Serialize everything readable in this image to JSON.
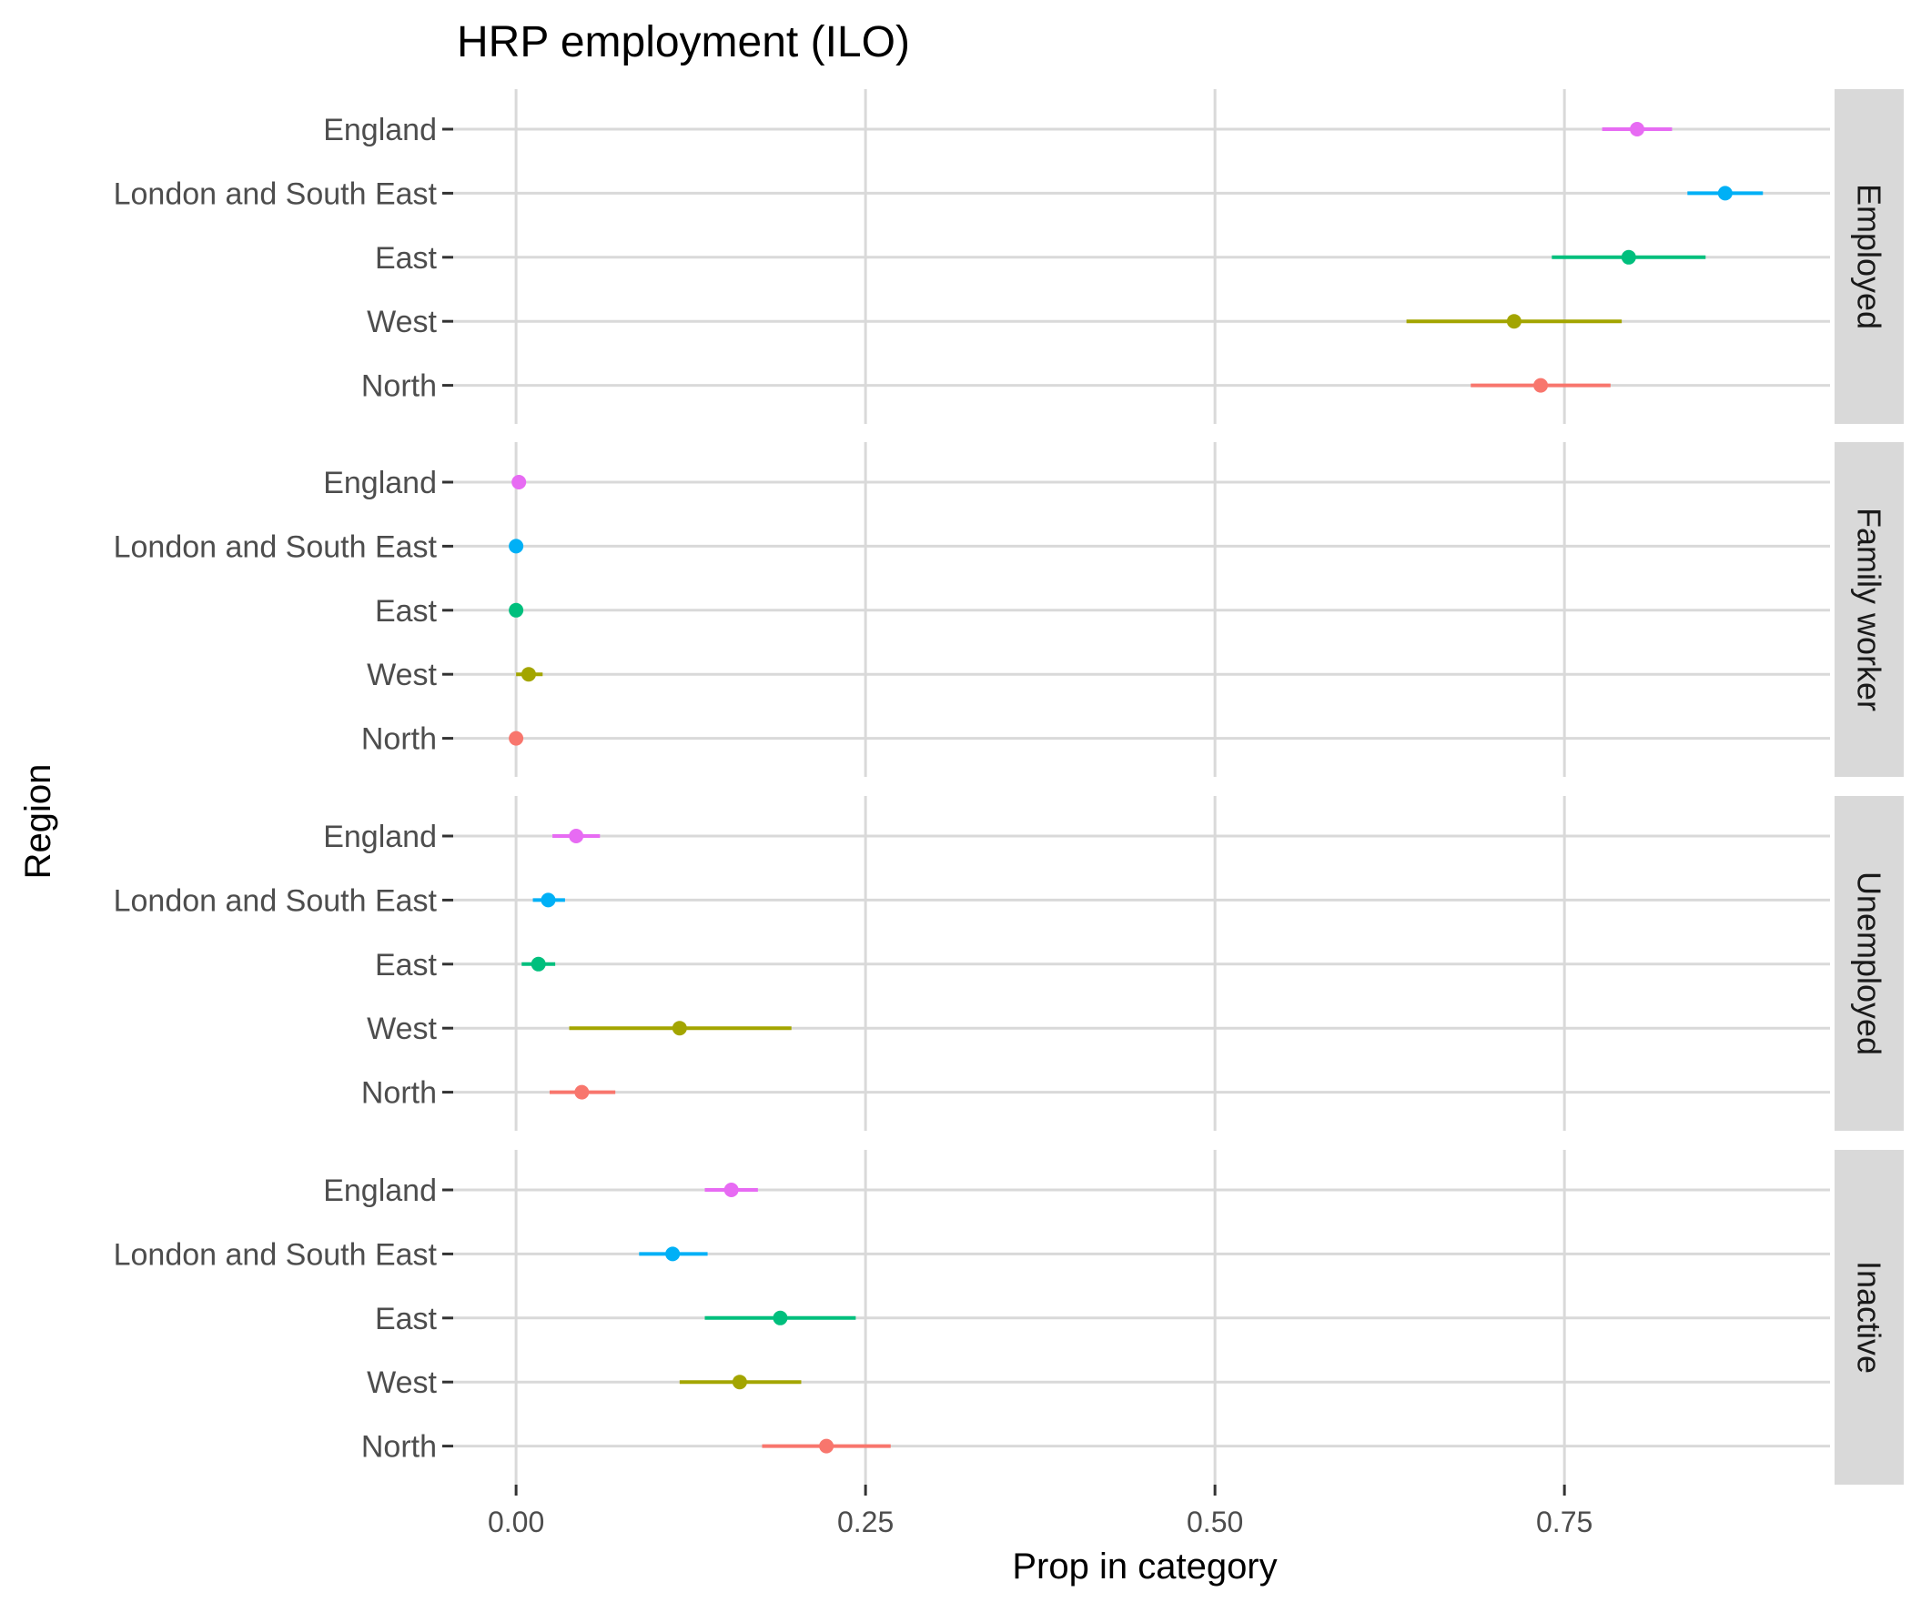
{
  "chart_data": {
    "type": "scatter",
    "subtype": "point-range",
    "title": "HRP employment (ILO)",
    "xlabel": "Prop in category",
    "ylabel": "Region",
    "xlim": [
      -0.045,
      0.94
    ],
    "x_ticks": [
      0,
      0.25,
      0.5,
      0.75
    ],
    "x_tick_labels": [
      "0.00",
      "0.25",
      "0.50",
      "0.75"
    ],
    "grid": true,
    "legend": "none",
    "regions": [
      "England",
      "London and South East",
      "East",
      "West",
      "North"
    ],
    "colors": {
      "England": "#E76BF3",
      "London and South East": "#00B0F6",
      "East": "#00BF7D",
      "West": "#A3A500",
      "North": "#F8766D"
    },
    "panels": [
      {
        "facet": "Employed",
        "points": [
          {
            "region": "England",
            "value": 0.802,
            "low": 0.777,
            "high": 0.827
          },
          {
            "region": "London and South East",
            "value": 0.865,
            "low": 0.838,
            "high": 0.892
          },
          {
            "region": "East",
            "value": 0.796,
            "low": 0.741,
            "high": 0.851
          },
          {
            "region": "West",
            "value": 0.714,
            "low": 0.637,
            "high": 0.791
          },
          {
            "region": "North",
            "value": 0.733,
            "low": 0.683,
            "high": 0.783
          }
        ]
      },
      {
        "facet": "Family worker",
        "points": [
          {
            "region": "England",
            "value": 0.002,
            "low": 0.0,
            "high": 0.004
          },
          {
            "region": "London and South East",
            "value": 0.0,
            "low": 0.0,
            "high": 0.0
          },
          {
            "region": "East",
            "value": 0.0,
            "low": 0.0,
            "high": 0.0
          },
          {
            "region": "West",
            "value": 0.009,
            "low": 0.0,
            "high": 0.019
          },
          {
            "region": "North",
            "value": 0.0,
            "low": 0.0,
            "high": 0.0
          }
        ]
      },
      {
        "facet": "Unemployed",
        "points": [
          {
            "region": "England",
            "value": 0.043,
            "low": 0.026,
            "high": 0.06
          },
          {
            "region": "London and South East",
            "value": 0.023,
            "low": 0.012,
            "high": 0.035
          },
          {
            "region": "East",
            "value": 0.016,
            "low": 0.004,
            "high": 0.028
          },
          {
            "region": "West",
            "value": 0.117,
            "low": 0.038,
            "high": 0.197
          },
          {
            "region": "North",
            "value": 0.047,
            "low": 0.024,
            "high": 0.071
          }
        ]
      },
      {
        "facet": "Inactive",
        "points": [
          {
            "region": "England",
            "value": 0.154,
            "low": 0.135,
            "high": 0.173
          },
          {
            "region": "London and South East",
            "value": 0.112,
            "low": 0.088,
            "high": 0.137
          },
          {
            "region": "East",
            "value": 0.189,
            "low": 0.135,
            "high": 0.243
          },
          {
            "region": "West",
            "value": 0.16,
            "low": 0.117,
            "high": 0.204
          },
          {
            "region": "North",
            "value": 0.222,
            "low": 0.176,
            "high": 0.268
          }
        ]
      }
    ]
  }
}
